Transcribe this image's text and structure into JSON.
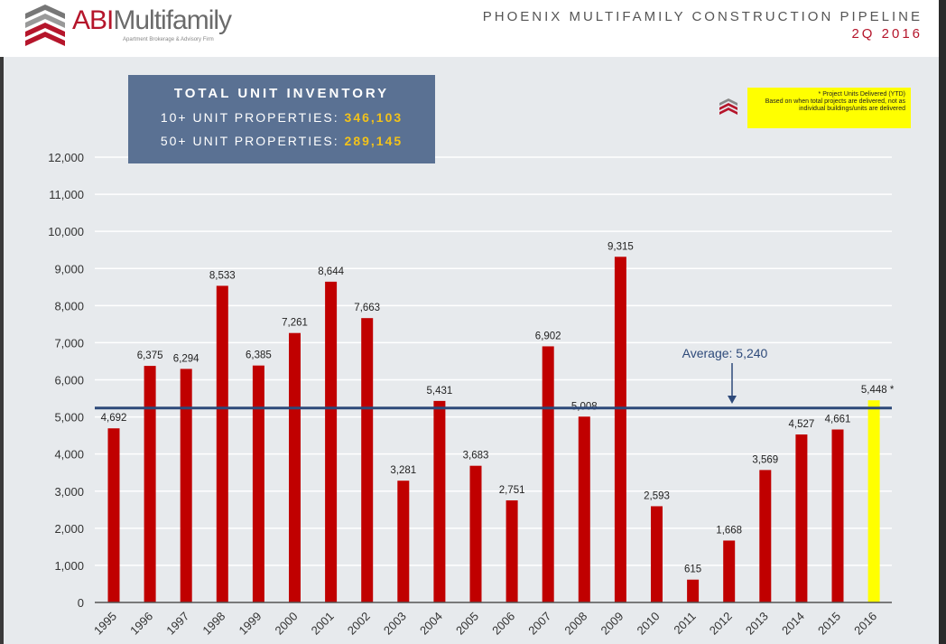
{
  "header": {
    "logo_abi": "ABI",
    "logo_multifamily": "Multifamily",
    "logo_tagline": "Apartment Brokerage & Advisory Firm",
    "title": "PHOENIX MULTIFAMILY CONSTRUCTION PIPELINE",
    "subtitle": "2Q 2016"
  },
  "inventory": {
    "heading": "TOTAL UNIT INVENTORY",
    "row1_label": "10+ UNIT PROPERTIES:",
    "row1_value": "346,103",
    "row2_label": "50+ UNIT PROPERTIES:",
    "row2_value": "289,145"
  },
  "note": {
    "line1": "* Project Units Delivered (YTD)",
    "line2": "Based on when total projects are delivered, not as individual buildings/units are delivered"
  },
  "chart_data": {
    "type": "bar",
    "categories": [
      "1995",
      "1996",
      "1997",
      "1998",
      "1999",
      "2000",
      "2001",
      "2002",
      "2003",
      "2004",
      "2005",
      "2006",
      "2007",
      "2008",
      "2009",
      "2010",
      "2011",
      "2012",
      "2013",
      "2014",
      "2015",
      "2016"
    ],
    "values": [
      4692,
      6375,
      6294,
      8533,
      6385,
      7261,
      8644,
      7663,
      3281,
      5431,
      3683,
      2751,
      6902,
      5008,
      9315,
      2593,
      615,
      1668,
      3569,
      4527,
      4661,
      5448
    ],
    "data_labels": [
      "4,692",
      "6,375",
      "6,294",
      "8,533",
      "6,385",
      "7,261",
      "8,644",
      "7,663",
      "3,281",
      "5,431",
      "3,683",
      "2,751",
      "6,902",
      "5,008",
      "9,315",
      "2,593",
      "615",
      "1,668",
      "3,569",
      "4,527",
      "4,661",
      "5,448 *"
    ],
    "ylim": [
      0,
      12000
    ],
    "yticks": [
      "0",
      "1,000",
      "2,000",
      "3,000",
      "4,000",
      "5,000",
      "6,000",
      "7,000",
      "8,000",
      "9,000",
      "10,000",
      "11,000",
      "12,000"
    ],
    "grid": true,
    "average": {
      "value": 5240,
      "label": "Average: 5,240"
    },
    "colors": {
      "bar": "#c00000",
      "highlight": "#ffff00",
      "average": "#2e4a7a"
    }
  }
}
